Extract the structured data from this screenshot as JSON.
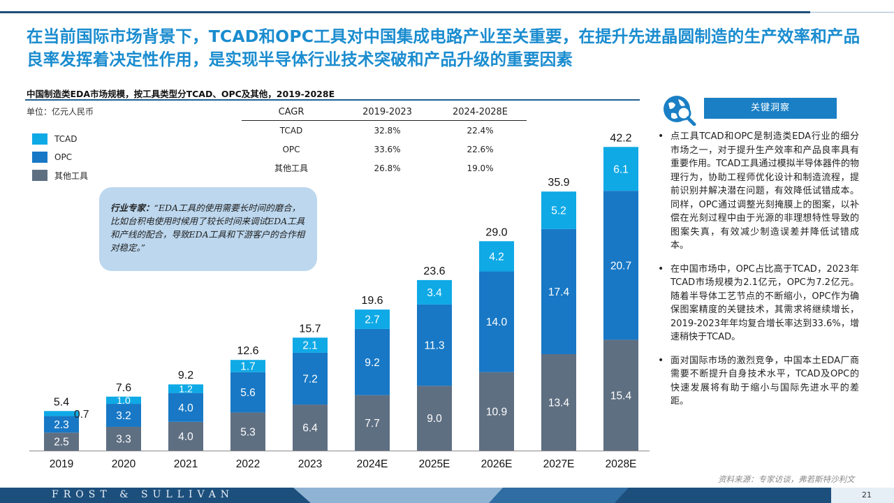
{
  "headline": "在当前国际市场背景下，TCAD和OPC工具对中国集成电路产业至关重要，在提升先进晶圆制造的生产效率和产品良率发挥着决定性作用，是实现半导体行业技术突破和产品升级的重要因素",
  "chart_title": "中国制造类EDA市场规模，按工具类型分TCAD、OPC及其他，2019-2028E",
  "unit": "单位：亿元人民币",
  "legend": [
    {
      "label": "TCAD",
      "color": "#0fa9e6"
    },
    {
      "label": "OPC",
      "color": "#1878c5"
    },
    {
      "label": "其他工具",
      "color": "#5f6f82"
    }
  ],
  "cagr_table": {
    "headers": [
      "CAGR",
      "2019-2023",
      "2024-2028E"
    ],
    "rows": [
      [
        "TCAD",
        "32.8%",
        "22.4%"
      ],
      [
        "OPC",
        "33.6%",
        "22.6%"
      ],
      [
        "其他工具",
        "26.8%",
        "19.0%"
      ]
    ]
  },
  "callout": {
    "label": "行业专家：",
    "quote": "“EDA工具的使用需要长时间的磨合，比如台积电使用时候用了较长时间来调试EDA工具和产线的配合，导致EDA工具和下游客户的合作相对稳定。”"
  },
  "chart_data": {
    "type": "bar",
    "stacked": true,
    "categories": [
      "2019",
      "2020",
      "2021",
      "2022",
      "2023",
      "2024E",
      "2025E",
      "2026E",
      "2027E",
      "2028E"
    ],
    "series": [
      {
        "name": "其他工具",
        "color": "#5f6f82",
        "values": [
          2.5,
          3.3,
          4.0,
          5.3,
          6.4,
          7.7,
          9.0,
          10.9,
          13.4,
          15.4
        ],
        "labels": [
          "2.5",
          "3.3",
          "4.0",
          "5.3",
          "6.4",
          "7.7",
          "9.0",
          "10.9",
          "13.4",
          "15.4"
        ]
      },
      {
        "name": "OPC",
        "color": "#1878c5",
        "values": [
          2.3,
          3.2,
          4.0,
          5.6,
          7.2,
          9.2,
          11.3,
          14.0,
          17.4,
          20.7
        ],
        "labels": [
          "2.3",
          "3.2",
          "4.0",
          "5.6",
          "7.2",
          "9.2",
          "11.3",
          "14.0",
          "17.4",
          "20.7"
        ]
      },
      {
        "name": "TCAD",
        "color": "#0fa9e6",
        "values": [
          0.7,
          1.0,
          1.2,
          1.7,
          2.1,
          2.7,
          3.4,
          4.2,
          5.2,
          6.1
        ],
        "labels": [
          "0.7",
          "1.0",
          "1.2",
          "1.7",
          "2.1",
          "2.7",
          "3.4",
          "4.2",
          "5.2",
          "6.1"
        ]
      }
    ],
    "totals": [
      "5.4",
      "7.6",
      "9.2",
      "12.6",
      "15.7",
      "19.6",
      "23.6",
      "29.0",
      "35.9",
      "42.2"
    ],
    "ylim": [
      0,
      45
    ]
  },
  "insight_title": "关键洞察",
  "bullets": [
    "点工具TCAD和OPC是制造类EDA行业的细分市场之一，对于提升生产效率和产品良率具有重要作用。TCAD工具通过模拟半导体器件的物理行为，协助工程师优化设计和制造流程，提前识别并解决潜在问题，有效降低试错成本。同样，OPC通过调整光刻掩膜上的图案，以补偿在光刻过程中由于光源的非理想特性导致的图案失真，有效减少制造误差并降低试错成本。",
    "在中国市场中，OPC占比高于TCAD，2023年TCAD市场规模为2.1亿元，OPC为7.2亿元。随着半导体工艺节点的不断缩小，OPC作为确保图案精度的关键技术，其需求将继续增长，2019-2023年年均复合增长率达到33.6%，增速稍快于TCAD。",
    "面对国际市场的激烈竞争，中国本土EDA厂商需要不断提升自身技术水平，TCAD及OPC的快速发展将有助于缩小与国际先进水平的差距。"
  ],
  "source": "资料来源：专家访谈，弗若斯特沙利文",
  "footer_brand": "FROST & SULLIVAN",
  "page_number": "21"
}
